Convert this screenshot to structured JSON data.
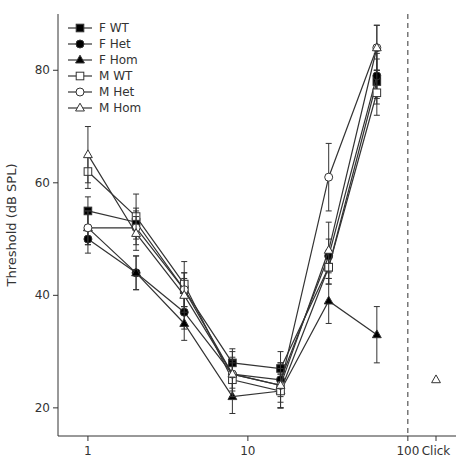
{
  "chart_data": {
    "type": "line",
    "y_label": "Threshold (dB SPL)",
    "log": "x",
    "grid": false,
    "legend": "upper left",
    "xlim": [
      0.65,
      200
    ],
    "xticks": [
      1,
      10,
      100,
      {
        "value": 150,
        "label": "Click"
      }
    ],
    "ylim": [
      15,
      90
    ],
    "yticks": [
      20,
      40,
      60,
      80
    ],
    "x": [
      1,
      2,
      4,
      8,
      16,
      32,
      64
    ],
    "series": [
      {
        "name": "F WT",
        "marker": "square",
        "color": "black",
        "values": [
          55,
          53,
          41,
          28,
          27,
          45,
          78
        ],
        "errors": [
          2.5,
          2.5,
          3,
          2.5,
          3,
          3,
          4
        ]
      },
      {
        "name": "F Het",
        "marker": "circle",
        "color": "black",
        "values": [
          50,
          44,
          37,
          26,
          25,
          47,
          79
        ],
        "errors": [
          2.5,
          3,
          3,
          2.5,
          3,
          3,
          4
        ]
      },
      {
        "name": "F Hom",
        "marker": "triangle",
        "color": "black",
        "values": [
          52,
          44,
          35,
          22,
          23,
          39,
          33
        ],
        "errors": [
          3,
          3,
          3,
          3,
          3,
          4,
          5
        ]
      },
      {
        "name": "M WT",
        "marker": "square",
        "color": "white",
        "values": [
          62,
          54,
          42,
          25,
          23,
          45,
          76
        ],
        "errors": [
          3,
          4,
          4,
          3,
          3,
          3,
          4
        ]
      },
      {
        "name": "M Het",
        "marker": "circle",
        "color": "white",
        "values": [
          52,
          52,
          41,
          26,
          24,
          61,
          84
        ],
        "errors": [
          3,
          3,
          3,
          4,
          4,
          6,
          4
        ]
      },
      {
        "name": "M Hom",
        "marker": "triangle",
        "color": "white",
        "values": [
          65,
          51,
          40,
          26,
          24,
          48,
          84
        ],
        "errors": [
          5,
          3,
          3,
          3,
          3,
          5,
          4
        ]
      }
    ],
    "extra_points": [
      {
        "x": 150,
        "y": 25,
        "marker": "triangle",
        "color": "white"
      }
    ],
    "vlines": [
      100
    ]
  }
}
